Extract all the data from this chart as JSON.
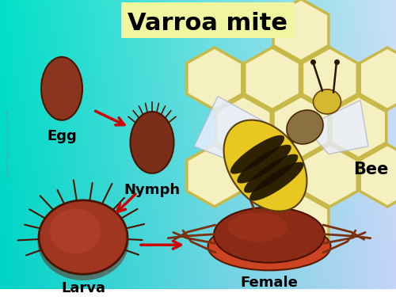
{
  "title": "Varroa mite",
  "title_bg": "#f0f5a0",
  "labels": {
    "egg": "Egg",
    "nymph": "Nymph",
    "larva": "Larva",
    "female": "Female",
    "bee": "Bee"
  },
  "label_fontsize": 13,
  "title_fontsize": 22,
  "egg_color": "#8B3520",
  "nymph_color": "#7B2E18",
  "larva_body_color": "#A03520",
  "larva_shadow_color": "#7B2010",
  "female_outer_color": "#CC4422",
  "female_body_color": "#8B2A15",
  "female_leg_color": "#7B3010",
  "arrow_color": "#CC0000",
  "honeycomb_edge": "#C8B848",
  "honeycomb_fill": "#F5F0C0",
  "bee_abdomen_yellow": "#E8C820",
  "bee_abdomen_black": "#1A1000",
  "bee_thorax_color": "#8B7040",
  "bee_head_color": "#D4B830",
  "bee_wing_color": "#E8EEFF",
  "bee_leg_color": "#3A1800",
  "bee_antenna_color": "#2A1400"
}
